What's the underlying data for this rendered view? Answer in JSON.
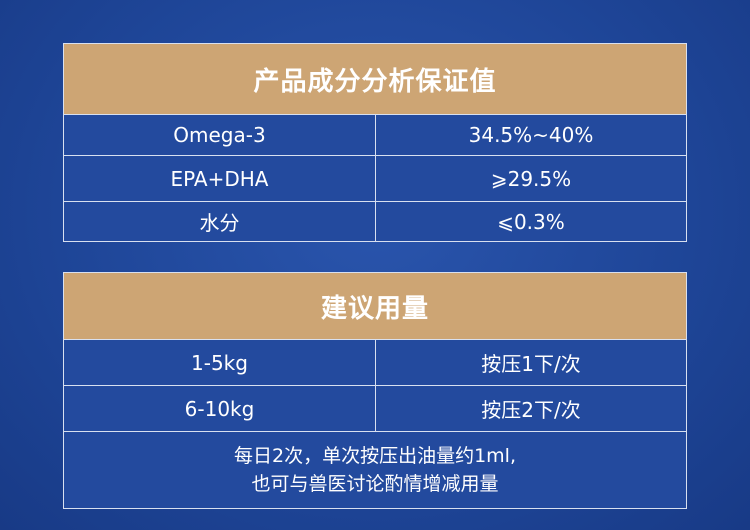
{
  "analysis": {
    "title": "产品成分分析保证值",
    "rows": [
      {
        "name": "Omega-3",
        "value": "34.5%~40%"
      },
      {
        "name": "EPA+DHA",
        "value": "⩾29.5%"
      },
      {
        "name": "水分",
        "value": "⩽0.3%"
      }
    ]
  },
  "dosage": {
    "title": "建议用量",
    "rows": [
      {
        "weight": "1-5kg",
        "amount": "按压1下/次"
      },
      {
        "weight": "6-10kg",
        "amount": "按压2下/次"
      }
    ],
    "note_line1": "每日2次，单次按压出油量约1ml,",
    "note_line2": "也可与兽医讨论酌情增减用量"
  },
  "colors": {
    "header": "#cda574",
    "cell": "#234a9e"
  }
}
